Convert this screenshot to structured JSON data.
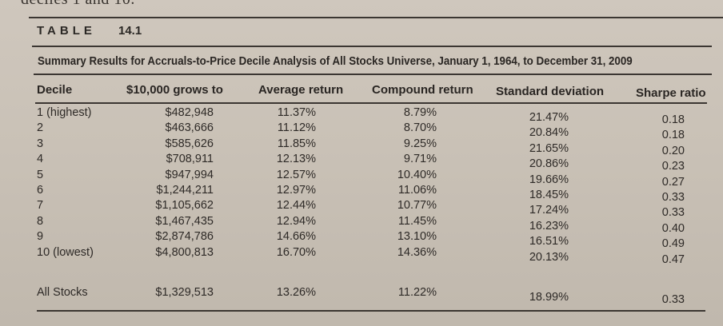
{
  "top_fragment": "deciles 1 and 10.",
  "table_label": "TABLE",
  "table_number": "14.1",
  "caption": "Summary Results for Accruals-to-Price Decile Analysis of All Stocks Universe, January 1, 1964, to December 31, 2009",
  "columns": [
    "Decile",
    "$10,000 grows to",
    "Average return",
    "Compound return",
    "Standard deviation",
    "Sharpe ratio"
  ],
  "rows": [
    {
      "decile": "1 (highest)",
      "grows_to": "$482,948",
      "avg": "11.37%",
      "comp": "8.79%",
      "std": "21.47%",
      "sharpe": "0.18"
    },
    {
      "decile": "2",
      "grows_to": "$463,666",
      "avg": "11.12%",
      "comp": "8.70%",
      "std": "20.84%",
      "sharpe": "0.18"
    },
    {
      "decile": "3",
      "grows_to": "$585,626",
      "avg": "11.85%",
      "comp": "9.25%",
      "std": "21.65%",
      "sharpe": "0.20"
    },
    {
      "decile": "4",
      "grows_to": "$708,911",
      "avg": "12.13%",
      "comp": "9.71%",
      "std": "20.86%",
      "sharpe": "0.23"
    },
    {
      "decile": "5",
      "grows_to": "$947,994",
      "avg": "12.57%",
      "comp": "10.40%",
      "std": "19.66%",
      "sharpe": "0.27"
    },
    {
      "decile": "6",
      "grows_to": "$1,244,211",
      "avg": "12.97%",
      "comp": "11.06%",
      "std": "18.45%",
      "sharpe": "0.33"
    },
    {
      "decile": "7",
      "grows_to": "$1,105,662",
      "avg": "12.44%",
      "comp": "10.77%",
      "std": "17.24%",
      "sharpe": "0.33"
    },
    {
      "decile": "8",
      "grows_to": "$1,467,435",
      "avg": "12.94%",
      "comp": "11.45%",
      "std": "16.23%",
      "sharpe": "0.40"
    },
    {
      "decile": "9",
      "grows_to": "$2,874,786",
      "avg": "14.66%",
      "comp": "13.10%",
      "std": "16.51%",
      "sharpe": "0.49"
    },
    {
      "decile": "10 (lowest)",
      "grows_to": "$4,800,813",
      "avg": "16.70%",
      "comp": "14.36%",
      "std": "20.13%",
      "sharpe": "0.47"
    }
  ],
  "all_stocks": {
    "decile": "All Stocks",
    "grows_to": "$1,329,513",
    "avg": "13.26%",
    "comp": "11.22%",
    "std": "18.99%",
    "sharpe": "0.33"
  }
}
